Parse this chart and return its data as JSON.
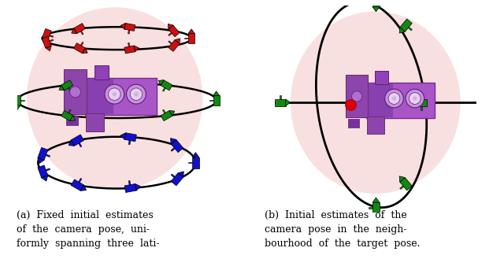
{
  "fig_width": 6.4,
  "fig_height": 3.29,
  "dpi": 100,
  "background_color": "#ffffff",
  "caption_a": "(a)  Fixed  initial  estimates\nof  the  camera  pose,  uni-\nformly  spanning  three  lati-",
  "caption_b": "(b)  Initial  estimates  of  the\ncamera  pose  in  the  neigh-\nbourhood  of  the  target  pose.",
  "caption_fontsize": 9.0,
  "pink_facecolor": "#f5c8c8",
  "pink_alpha": 0.55,
  "orbit_color": "#000000",
  "orbit_lw": 1.8,
  "camera_red": "#cc1111",
  "camera_green": "#118811",
  "camera_blue": "#1111cc",
  "red_dot": "#dd0000"
}
